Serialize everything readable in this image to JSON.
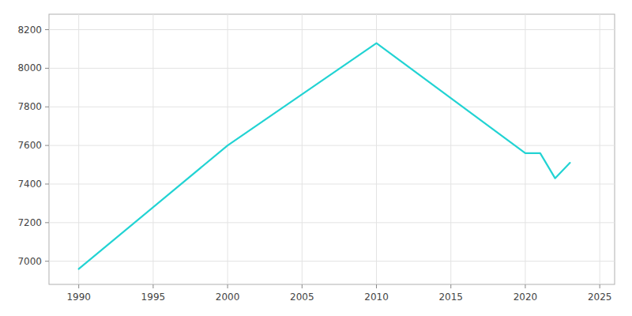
{
  "chart_data": {
    "type": "line",
    "x": [
      1990,
      2000,
      2010,
      2020,
      2021,
      2022,
      2023
    ],
    "values": [
      6960,
      7600,
      8130,
      7560,
      7560,
      7430,
      7510
    ],
    "color": "#22d3d3",
    "xlim": [
      1988,
      2026
    ],
    "ylim": [
      6880,
      8280
    ],
    "xticks": [
      1990,
      1995,
      2000,
      2005,
      2010,
      2015,
      2020,
      2025
    ],
    "yticks": [
      7000,
      7200,
      7400,
      7600,
      7800,
      8000,
      8200
    ],
    "grid": true
  }
}
